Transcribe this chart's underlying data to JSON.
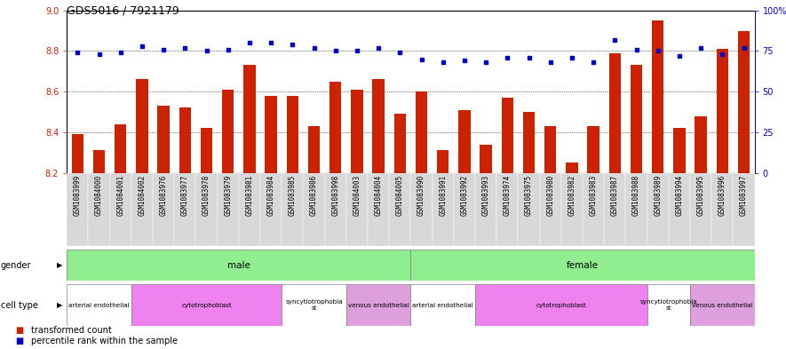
{
  "title": "GDS5016 / 7921179",
  "samples": [
    "GSM1083999",
    "GSM1084000",
    "GSM1084001",
    "GSM1084002",
    "GSM1083976",
    "GSM1083977",
    "GSM1083978",
    "GSM1083979",
    "GSM1083981",
    "GSM1083984",
    "GSM1083985",
    "GSM1083986",
    "GSM1083998",
    "GSM1084003",
    "GSM1084004",
    "GSM1084005",
    "GSM1083990",
    "GSM1083991",
    "GSM1083992",
    "GSM1083993",
    "GSM1083974",
    "GSM1083975",
    "GSM1083980",
    "GSM1083982",
    "GSM1083983",
    "GSM1083987",
    "GSM1083988",
    "GSM1083989",
    "GSM1083994",
    "GSM1083995",
    "GSM1083996",
    "GSM1083997"
  ],
  "bar_values": [
    8.39,
    8.31,
    8.44,
    8.66,
    8.53,
    8.52,
    8.42,
    8.61,
    8.73,
    8.58,
    8.58,
    8.43,
    8.65,
    8.61,
    8.66,
    8.49,
    8.6,
    8.31,
    8.51,
    8.34,
    8.57,
    8.5,
    8.43,
    8.25,
    8.43,
    8.79,
    8.73,
    8.95,
    8.42,
    8.48,
    8.81,
    8.9
  ],
  "percentile_values": [
    74,
    73,
    74,
    78,
    76,
    77,
    75,
    76,
    80,
    80,
    79,
    77,
    75,
    75,
    77,
    74,
    70,
    68,
    69,
    68,
    71,
    71,
    68,
    71,
    68,
    82,
    76,
    75,
    72,
    77,
    73,
    77
  ],
  "ylim_left": [
    8.2,
    9.0
  ],
  "ylim_right": [
    0,
    100
  ],
  "yticks_left": [
    8.2,
    8.4,
    8.6,
    8.8,
    9.0
  ],
  "yticks_right": [
    0,
    25,
    50,
    75,
    100
  ],
  "bar_color": "#cc2200",
  "dot_color": "#0000cc",
  "bar_bottom": 8.2,
  "gender_groups": [
    {
      "label": "male",
      "start": 0,
      "end": 15,
      "color": "#90ee90"
    },
    {
      "label": "female",
      "start": 16,
      "end": 31,
      "color": "#90ee90"
    }
  ],
  "cell_type_groups": [
    {
      "label": "arterial endothelial",
      "start": 0,
      "end": 2,
      "color": "#ffffff"
    },
    {
      "label": "cytotrophoblast",
      "start": 3,
      "end": 9,
      "color": "#ee82ee"
    },
    {
      "label": "syncytiotrophoblast",
      "start": 10,
      "end": 12,
      "color": "#ffffff"
    },
    {
      "label": "venous endothelial",
      "start": 13,
      "end": 15,
      "color": "#dda0dd"
    },
    {
      "label": "arterial endothelial",
      "start": 16,
      "end": 18,
      "color": "#ffffff"
    },
    {
      "label": "cytotrophoblast",
      "start": 19,
      "end": 26,
      "color": "#ee82ee"
    },
    {
      "label": "syncytiotrophoblast",
      "start": 27,
      "end": 28,
      "color": "#ffffff"
    },
    {
      "label": "venous endothelial",
      "start": 29,
      "end": 31,
      "color": "#dda0dd"
    }
  ],
  "legend_items": [
    {
      "label": "transformed count",
      "color": "#cc2200"
    },
    {
      "label": "percentile rank within the sample",
      "color": "#0000cc"
    }
  ],
  "title_fontsize": 9,
  "tick_fontsize": 5.5,
  "axis_label_color_left": "#cc2200",
  "axis_label_color_right": "#0000cc",
  "xtick_bg_color": "#d8d8d8",
  "grid_line_color": "#000000",
  "row_label_fontsize": 7,
  "row_content_fontsize": 7.5
}
